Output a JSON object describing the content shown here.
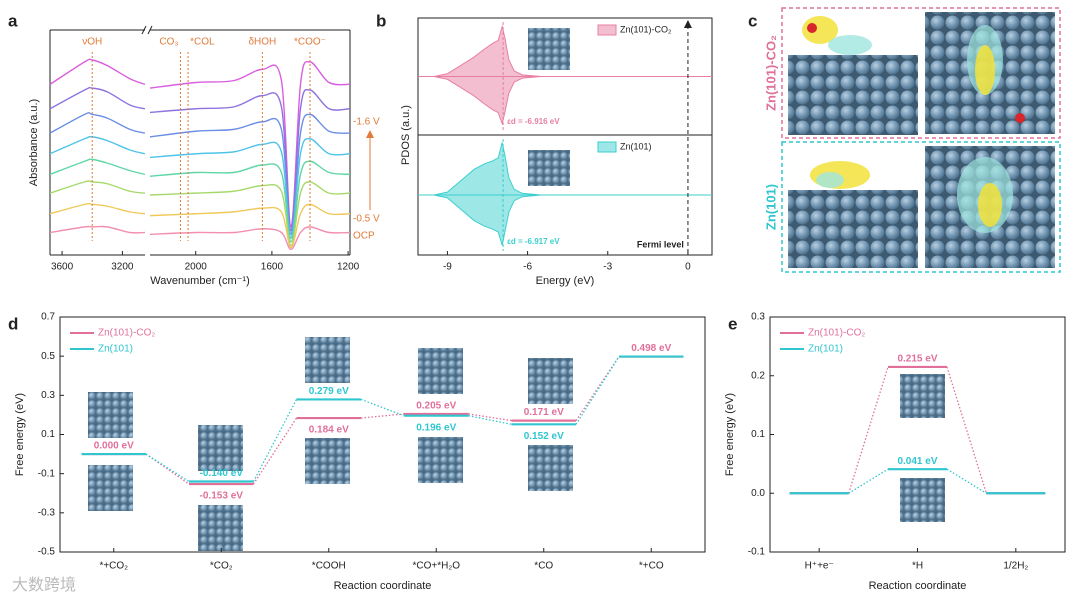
{
  "panel_labels": [
    "a",
    "b",
    "c",
    "d",
    "e"
  ],
  "watermark": "大数跨境",
  "structure_panel": {
    "labels": [
      "Zn(101)-CO₂",
      "Zn(101)"
    ]
  },
  "chart_data": [
    {
      "type": "line",
      "xlabel": "Wavenumber (cm⁻¹)",
      "ylabel": "Absorbance (a.u.)",
      "x": [
        3680,
        3450,
        3400,
        3300,
        3150,
        3050,
        2500,
        2240,
        2000,
        1800,
        1650,
        1550,
        1500,
        1450,
        1400,
        1300,
        1190
      ],
      "xlim_segments": [
        [
          3680,
          3050
        ],
        [
          2240,
          1190
        ]
      ],
      "xticks": [
        3600,
        3200,
        2000,
        1600,
        1200
      ],
      "ylim": [
        0,
        12
      ],
      "series": [
        {
          "color": "#d95fe0",
          "values": [
            9.1,
            10.3,
            10.4,
            10.1,
            9.4,
            9.1,
            null,
            8.9,
            9.2,
            9.3,
            9.9,
            9.3,
            1.5,
            9.1,
            10.3,
            9.2,
            9.1
          ]
        },
        {
          "color": "#8e72e0",
          "values": [
            7.8,
            8.8,
            8.9,
            8.7,
            8.0,
            7.8,
            null,
            7.6,
            7.8,
            7.9,
            8.5,
            7.9,
            1.3,
            7.8,
            8.8,
            7.8,
            7.8
          ]
        },
        {
          "color": "#6a8fe6",
          "values": [
            6.5,
            7.5,
            7.5,
            7.3,
            6.7,
            6.5,
            null,
            6.3,
            6.6,
            6.7,
            7.1,
            6.7,
            1.1,
            6.5,
            7.5,
            6.6,
            6.5
          ]
        },
        {
          "color": "#4fc3e8",
          "values": [
            5.4,
            6.2,
            6.3,
            6.1,
            5.6,
            5.4,
            null,
            5.2,
            5.4,
            5.5,
            5.9,
            5.5,
            0.9,
            5.4,
            6.2,
            5.4,
            5.4
          ]
        },
        {
          "color": "#5ed6a6",
          "values": [
            4.3,
            5.0,
            5.1,
            4.9,
            4.5,
            4.3,
            null,
            4.2,
            4.4,
            4.4,
            4.8,
            4.4,
            0.7,
            4.3,
            5.0,
            4.4,
            4.3
          ]
        },
        {
          "color": "#a6d96a",
          "values": [
            3.3,
            3.9,
            3.9,
            3.8,
            3.4,
            3.3,
            null,
            3.2,
            3.3,
            3.4,
            3.7,
            3.4,
            0.5,
            3.3,
            3.9,
            3.3,
            3.3
          ]
        },
        {
          "color": "#f0c85a",
          "values": [
            2.2,
            2.7,
            2.7,
            2.6,
            2.3,
            2.2,
            null,
            2.1,
            2.2,
            2.3,
            2.5,
            2.3,
            0.4,
            2.2,
            2.7,
            2.2,
            2.2
          ]
        },
        {
          "color": "#f28fb0",
          "values": [
            1.2,
            1.5,
            1.5,
            1.5,
            1.2,
            1.2,
            null,
            1.1,
            1.2,
            1.2,
            1.4,
            1.2,
            0.3,
            1.2,
            1.5,
            1.2,
            1.2
          ]
        }
      ],
      "peaks": [
        {
          "text": "νOH",
          "x": 3400
        },
        {
          "text": "CO₃",
          "x": 2080
        },
        {
          "text": "*COL",
          "x": 2040
        },
        {
          "text": "δHOH",
          "x": 1650
        },
        {
          "text": "*COO⁻",
          "x": 1400
        }
      ],
      "annotations": [
        "-1.6 V",
        "-0.5 V",
        "OCP"
      ]
    },
    {
      "type": "area",
      "xlabel": "Energy (eV)",
      "ylabel": "PDOS (a.u.)",
      "xlim": [
        -10.1,
        0.9
      ],
      "xticks": [
        -9,
        -6,
        -3,
        0
      ],
      "ylim": [
        -1,
        1
      ],
      "x": [
        -10.1,
        -9.5,
        -9,
        -8.5,
        -8,
        -7.6,
        -7.3,
        -7.1,
        -6.95,
        -6.85,
        -6.7,
        -6.5,
        -6.2,
        -5.5,
        -4,
        0.9
      ],
      "series": [
        {
          "name": "Zn(101)-CO₂",
          "color": "#e87fa2",
          "center": -6.916,
          "center_label": "εd = -6.916 eV",
          "values": [
            0,
            0,
            0.05,
            0.2,
            0.35,
            0.5,
            0.6,
            0.65,
            0.9,
            0.7,
            0.3,
            0.1,
            0.03,
            0,
            0,
            0
          ],
          "values_down": [
            0,
            0,
            -0.05,
            -0.2,
            -0.35,
            -0.5,
            -0.6,
            -0.65,
            -0.85,
            -0.65,
            -0.3,
            -0.1,
            -0.03,
            0,
            0,
            0
          ]
        },
        {
          "name": "Zn(101)",
          "color": "#3ccfcf",
          "center": -6.917,
          "center_label": "εd = -6.917 eV",
          "values": [
            0,
            0,
            0.05,
            0.25,
            0.45,
            0.55,
            0.6,
            0.65,
            0.92,
            0.7,
            0.3,
            0.1,
            0.03,
            0,
            0,
            0
          ],
          "values_down": [
            0,
            0,
            -0.05,
            -0.25,
            -0.45,
            -0.55,
            -0.6,
            -0.65,
            -0.88,
            -0.65,
            -0.3,
            -0.1,
            -0.03,
            0,
            0,
            0
          ]
        }
      ],
      "fermi_level": 0,
      "annotation": "Fermi level"
    },
    {
      "type": "energy_levels",
      "xlabel": "Reaction coordinate",
      "ylabel": "Free energy (eV)",
      "categories": [
        "*+CO₂",
        "*CO₂",
        "*COOH",
        "*CO+*H₂O",
        "*CO",
        "*+CO"
      ],
      "ylim": [
        -0.5,
        0.7
      ],
      "yticks": [
        -0.5,
        -0.3,
        -0.1,
        0.1,
        0.3,
        0.5,
        0.7
      ],
      "legend": "upper left",
      "series": [
        {
          "name": "Zn(101)-CO₂",
          "color": "#e0709a",
          "values": [
            0,
            -0.153,
            0.184,
            0.205,
            0.171,
            0.498
          ],
          "value_labels": [
            "0.000 eV",
            "-0.153 eV",
            "0.184 eV",
            "0.205 eV",
            "0.171 eV",
            "0.498 eV"
          ]
        },
        {
          "name": "Zn(101)",
          "color": "#2fc6d0",
          "values": [
            0,
            -0.14,
            0.279,
            0.196,
            0.152,
            0.498
          ],
          "value_labels": [
            null,
            "-0.140 eV",
            "0.279 eV",
            "0.196 eV",
            "0.152 eV",
            null
          ]
        }
      ]
    },
    {
      "type": "energy_levels",
      "xlabel": "Reaction coordinate",
      "ylabel": "Free energy (eV)",
      "categories": [
        "H⁺+e⁻",
        "*H",
        "1/2H₂"
      ],
      "ylim": [
        -0.1,
        0.3
      ],
      "yticks": [
        -0.1,
        {
          "value": 0,
          "label": "0.0"
        },
        0.1,
        0.2,
        0.3
      ],
      "legend": "upper left",
      "series": [
        {
          "name": "Zn(101)-CO₂",
          "color": "#e0709a",
          "values": [
            0,
            0.215,
            0
          ],
          "value_labels": [
            null,
            "0.215 eV",
            null
          ]
        },
        {
          "name": "Zn(101)",
          "color": "#2fc6d0",
          "values": [
            0,
            0.041,
            0
          ],
          "value_labels": [
            null,
            "0.041 eV",
            null
          ]
        }
      ]
    }
  ]
}
